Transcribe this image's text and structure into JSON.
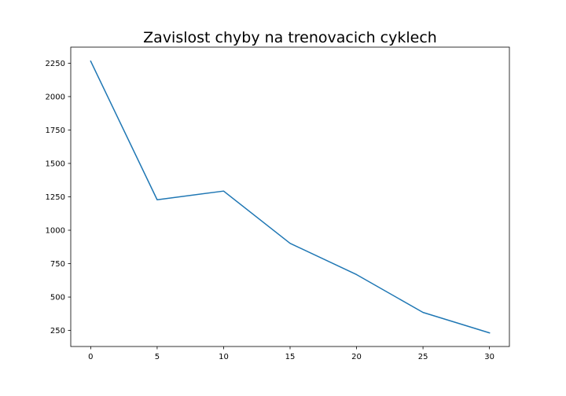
{
  "chart_data": {
    "type": "line",
    "title": "Zavislost chyby na trenovacich cyklech",
    "xlabel": "",
    "ylabel": "",
    "x": [
      0,
      5,
      10,
      15,
      20,
      25,
      30
    ],
    "series": [
      {
        "values": [
          2265,
          1228,
          1293,
          902,
          668,
          385,
          232
        ],
        "color": "#1f77b4"
      }
    ],
    "xlim": [
      -1.5,
      31.5
    ],
    "ylim": [
      130,
      2370
    ],
    "xticks": [
      0,
      5,
      10,
      15,
      20,
      25,
      30
    ],
    "yticks": [
      250,
      500,
      750,
      1000,
      1250,
      1500,
      1750,
      2000,
      2250
    ],
    "grid": false,
    "legend": "none"
  }
}
